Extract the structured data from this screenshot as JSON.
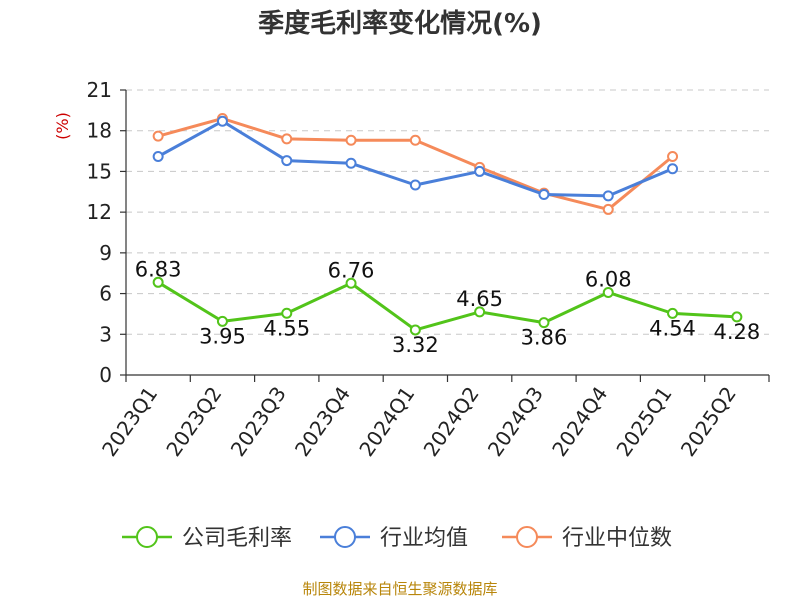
{
  "chart_data": {
    "type": "line",
    "title": "季度毛利率变化情况(%)",
    "ylabel": "(%)",
    "ylim": [
      0,
      21
    ],
    "yticks": [
      0,
      3,
      6,
      9,
      12,
      15,
      18,
      21
    ],
    "grid": true,
    "legend_position": "bottom",
    "categories": [
      "2023Q1",
      "2023Q2",
      "2023Q3",
      "2023Q4",
      "2024Q1",
      "2024Q2",
      "2024Q3",
      "2024Q4",
      "2025Q1",
      "2025Q2"
    ],
    "series": [
      {
        "name": "公司毛利率",
        "color": "#52c41a",
        "show_labels": true,
        "values": [
          6.83,
          3.95,
          4.55,
          6.76,
          3.32,
          4.65,
          3.86,
          6.08,
          4.54,
          4.28
        ],
        "labels": [
          "6.83",
          "3.95",
          "4.55",
          "6.76",
          "3.32",
          "4.65",
          "3.86",
          "6.08",
          "4.54",
          "4.28"
        ]
      },
      {
        "name": "行业均值",
        "color": "#4a7fd9",
        "show_labels": false,
        "values": [
          16.1,
          18.7,
          15.8,
          15.6,
          14.0,
          15.0,
          13.3,
          13.2,
          15.2,
          null
        ]
      },
      {
        "name": "行业中位数",
        "color": "#f58a5a",
        "show_labels": false,
        "values": [
          17.6,
          18.9,
          17.4,
          17.3,
          17.3,
          15.3,
          13.4,
          12.2,
          16.1,
          null
        ]
      }
    ]
  },
  "source": "制图数据来自恒生聚源数据库"
}
